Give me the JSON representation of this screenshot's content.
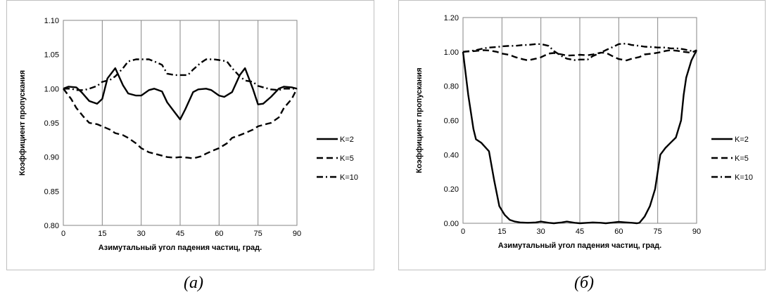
{
  "chart_data": [
    {
      "type": "line",
      "xlabel": "Азимутальный угол падения частиц, град.",
      "ylabel": "Коэффициент пропускания",
      "xlim": [
        0,
        90
      ],
      "ylim": [
        0.8,
        1.1
      ],
      "xticks": [
        "0",
        "15",
        "30",
        "45",
        "60",
        "75",
        "90"
      ],
      "yticks": [
        "0.80",
        "0.85",
        "0.90",
        "0.95",
        "1.00",
        "1.05",
        "1.10"
      ],
      "grid": "vertical",
      "legend_position": "right",
      "series": [
        {
          "name": "K=2",
          "style": "solid",
          "x": [
            0,
            2,
            5,
            7,
            10,
            13,
            15,
            17,
            20,
            23,
            25,
            28,
            30,
            33,
            35,
            38,
            40,
            43,
            45,
            47,
            50,
            52,
            55,
            57,
            60,
            62,
            65,
            68,
            70,
            73,
            75,
            77,
            80,
            83,
            85,
            88,
            90
          ],
          "y": [
            1.0,
            1.003,
            1.002,
            0.995,
            0.982,
            0.978,
            0.985,
            1.015,
            1.03,
            1.005,
            0.993,
            0.99,
            0.99,
            0.998,
            1.0,
            0.996,
            0.98,
            0.965,
            0.955,
            0.97,
            0.995,
            0.999,
            1.0,
            0.998,
            0.99,
            0.988,
            0.995,
            1.02,
            1.03,
            1.0,
            0.977,
            0.978,
            0.988,
            1.0,
            1.003,
            1.002,
            1.0
          ]
        },
        {
          "name": "K=5",
          "style": "dashed",
          "x": [
            0,
            3,
            5,
            8,
            10,
            13,
            15,
            18,
            20,
            23,
            25,
            28,
            30,
            33,
            35,
            38,
            40,
            43,
            45,
            48,
            50,
            53,
            55,
            58,
            60,
            63,
            65,
            68,
            70,
            73,
            75,
            78,
            80,
            83,
            85,
            88,
            90
          ],
          "y": [
            1.0,
            0.985,
            0.972,
            0.958,
            0.95,
            0.948,
            0.945,
            0.94,
            0.935,
            0.932,
            0.928,
            0.92,
            0.913,
            0.907,
            0.905,
            0.902,
            0.9,
            0.899,
            0.9,
            0.899,
            0.898,
            0.901,
            0.905,
            0.91,
            0.913,
            0.92,
            0.928,
            0.932,
            0.935,
            0.94,
            0.945,
            0.948,
            0.95,
            0.958,
            0.972,
            0.985,
            1.0
          ]
        },
        {
          "name": "K=10",
          "style": "dash-dot",
          "x": [
            0,
            3,
            5,
            8,
            10,
            13,
            15,
            18,
            20,
            23,
            25,
            28,
            30,
            33,
            35,
            38,
            40,
            43,
            45,
            48,
            50,
            53,
            55,
            58,
            60,
            63,
            65,
            68,
            70,
            73,
            75,
            78,
            80,
            83,
            85,
            88,
            90
          ],
          "y": [
            1.0,
            1.0,
            0.998,
            0.998,
            1.0,
            1.004,
            1.01,
            1.013,
            1.018,
            1.03,
            1.04,
            1.043,
            1.043,
            1.043,
            1.04,
            1.035,
            1.022,
            1.02,
            1.02,
            1.02,
            1.028,
            1.038,
            1.043,
            1.043,
            1.042,
            1.04,
            1.03,
            1.018,
            1.012,
            1.01,
            1.004,
            1.001,
            0.999,
            0.998,
            1.0,
            1.0,
            1.0
          ]
        }
      ]
    },
    {
      "type": "line",
      "xlabel": "Азимутальный угол падения частиц, град.",
      "ylabel": "Коэффициент пропускания",
      "xlim": [
        0,
        90
      ],
      "ylim": [
        0.0,
        1.2
      ],
      "xticks": [
        "0",
        "15",
        "30",
        "45",
        "60",
        "75",
        "90"
      ],
      "yticks": [
        "0.00",
        "0.20",
        "0.40",
        "0.60",
        "0.80",
        "1.00",
        "1.20"
      ],
      "grid": "vertical",
      "legend_position": "right",
      "series": [
        {
          "name": "K=2",
          "style": "solid",
          "x": [
            0,
            2,
            4,
            5,
            7,
            10,
            12,
            14,
            16,
            18,
            20,
            22,
            25,
            28,
            30,
            33,
            35,
            38,
            40,
            43,
            45,
            48,
            50,
            53,
            55,
            58,
            60,
            63,
            65,
            67,
            68,
            70,
            72,
            74,
            75,
            76,
            78,
            80,
            82,
            84,
            85,
            86,
            88,
            90
          ],
          "y": [
            1.0,
            0.75,
            0.55,
            0.49,
            0.47,
            0.42,
            0.25,
            0.1,
            0.05,
            0.02,
            0.01,
            0.005,
            0.003,
            0.005,
            0.01,
            0.003,
            0.0,
            0.005,
            0.01,
            0.003,
            0.0,
            0.003,
            0.005,
            0.003,
            0.0,
            0.005,
            0.008,
            0.005,
            0.003,
            0.0,
            0.003,
            0.04,
            0.1,
            0.2,
            0.3,
            0.4,
            0.44,
            0.47,
            0.5,
            0.6,
            0.75,
            0.85,
            0.95,
            1.01
          ]
        },
        {
          "name": "K=5",
          "style": "dashed",
          "x": [
            0,
            5,
            8,
            10,
            13,
            15,
            18,
            20,
            23,
            25,
            28,
            30,
            33,
            35,
            38,
            40,
            43,
            45,
            48,
            50,
            53,
            55,
            58,
            60,
            63,
            65,
            68,
            70,
            73,
            75,
            78,
            80,
            83,
            85,
            88,
            90
          ],
          "y": [
            1.0,
            1.005,
            1.01,
            1.008,
            1.0,
            0.99,
            0.982,
            0.97,
            0.957,
            0.95,
            0.96,
            0.968,
            0.99,
            0.993,
            0.985,
            0.978,
            0.98,
            0.983,
            0.98,
            0.985,
            0.995,
            0.995,
            0.972,
            0.958,
            0.95,
            0.96,
            0.97,
            0.985,
            0.99,
            0.995,
            1.005,
            1.01,
            1.005,
            1.0,
            0.995,
            1.01
          ]
        },
        {
          "name": "K=10",
          "style": "dash-dot",
          "x": [
            0,
            3,
            5,
            8,
            10,
            13,
            15,
            18,
            20,
            23,
            25,
            28,
            30,
            33,
            35,
            38,
            40,
            43,
            45,
            48,
            50,
            53,
            55,
            58,
            60,
            63,
            65,
            68,
            70,
            73,
            75,
            78,
            80,
            83,
            85,
            88,
            90
          ],
          "y": [
            1.0,
            1.005,
            1.01,
            1.02,
            1.025,
            1.028,
            1.032,
            1.035,
            1.035,
            1.04,
            1.04,
            1.045,
            1.045,
            1.035,
            1.005,
            0.975,
            0.96,
            0.952,
            0.955,
            0.955,
            0.975,
            0.995,
            1.01,
            1.03,
            1.045,
            1.048,
            1.04,
            1.035,
            1.03,
            1.028,
            1.025,
            1.025,
            1.02,
            1.02,
            1.015,
            1.005,
            1.0
          ]
        }
      ]
    }
  ],
  "captions": [
    "(a)",
    "(б)"
  ]
}
